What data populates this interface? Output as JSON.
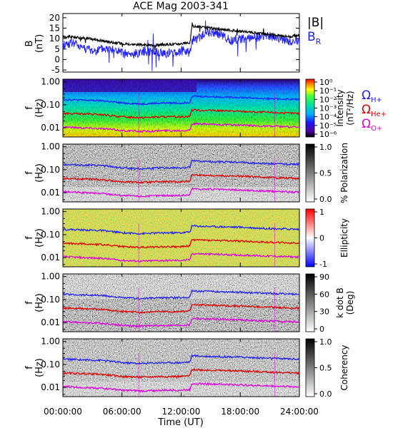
{
  "title": "ACE Mag 2003-341",
  "xlabel": "Time (UT)",
  "x_ticks": [
    "00:00:00",
    "06:00:00",
    "12:00:00",
    "18:00:00",
    "24:00:00"
  ],
  "legend": {
    "top": [
      {
        "label": "|B|",
        "color": "#000000"
      },
      {
        "label": "B",
        "sub": "R",
        "color": "#1f1fff"
      }
    ],
    "gyro": [
      {
        "label": "Ω",
        "sub": "H+",
        "color": "#1f1fff"
      },
      {
        "label": "Ω",
        "sub": "He+",
        "color": "#e00000"
      },
      {
        "label": "Ω",
        "sub": "O+",
        "color": "#e000e0"
      }
    ]
  },
  "panels": {
    "b": {
      "ylabel": "B",
      "yunit": "(nT)",
      "yticks": [
        "20",
        "15",
        "10",
        "5",
        "0",
        "-5"
      ]
    },
    "spectral": [
      {
        "id": "intensity",
        "ylabel": "f",
        "yunit": "(Hz)",
        "yticks": [
          "1.00",
          "0.10",
          "0.01"
        ],
        "cbar_label1": "Intensity",
        "cbar_label2": "(nT²/Hz)",
        "cbar_ticks": [
          "10⁰",
          "10⁻¹",
          "10⁻²",
          "10⁻³",
          "10⁻⁴",
          "10⁻⁵",
          "10⁻⁶"
        ]
      },
      {
        "id": "polarization",
        "ylabel": "f",
        "yunit": "(Hz)",
        "yticks": [
          "1.00",
          "0.10",
          "0.01"
        ],
        "cbar_label1": "% Polarization",
        "cbar_label2": "",
        "cbar_ticks": [
          "1.0",
          "0.5",
          "0.0"
        ]
      },
      {
        "id": "ellipticity",
        "ylabel": "f",
        "yunit": "(Hz)",
        "yticks": [
          "1.00",
          "0.10",
          "0.01"
        ],
        "cbar_label1": "Ellipticity",
        "cbar_label2": "",
        "cbar_ticks": [
          "1",
          "0",
          "-1"
        ]
      },
      {
        "id": "kdotb",
        "ylabel": "f",
        "yunit": "(Hz)",
        "yticks": [
          "1.00",
          "0.10",
          "0.01"
        ],
        "cbar_label1": "k dot B",
        "cbar_label2": "(Deg)",
        "cbar_ticks": [
          "90",
          "60",
          "30",
          "0"
        ]
      },
      {
        "id": "coherency",
        "ylabel": "f",
        "yunit": "(Hz)",
        "yticks": [
          "1.00",
          "0.10",
          "0.01"
        ],
        "cbar_label1": "Coherency",
        "cbar_label2": "",
        "cbar_ticks": [
          "1.0",
          "0.5",
          "0.0"
        ]
      }
    ]
  },
  "chart_data": {
    "type": "line",
    "title": "ACE Mag 2003-341",
    "xlabel": "Time (UT)",
    "xlim": [
      0,
      24
    ],
    "b_field": {
      "ylabel": "B (nT)",
      "ylim": [
        -6,
        22
      ],
      "x_hours": [
        0,
        1,
        2,
        3,
        4,
        5,
        6,
        7,
        8,
        9,
        10,
        11,
        12,
        12.9,
        13.1,
        14,
        15,
        16,
        17,
        18,
        19,
        20,
        21,
        22,
        23,
        24
      ],
      "series": [
        {
          "name": "|B|",
          "color": "#000000",
          "values": [
            11,
            10.8,
            10.3,
            9.8,
            9.0,
            8.2,
            7.7,
            7.3,
            7.0,
            6.9,
            7.0,
            7.3,
            7.6,
            8.0,
            16,
            15.5,
            15,
            14.5,
            14,
            13.5,
            13,
            12.5,
            12,
            11.5,
            11,
            11.5
          ]
        },
        {
          "name": "B_R",
          "color": "#1f1fff",
          "values": [
            7,
            8,
            6,
            4,
            5,
            5,
            3,
            2,
            4,
            4,
            3,
            3,
            4,
            4,
            9,
            11,
            13,
            12,
            9,
            10,
            10,
            11,
            11,
            10,
            9,
            9
          ]
        }
      ]
    },
    "gyrofrequency_traces": {
      "x_hours": [
        0,
        2,
        4,
        6,
        8,
        10,
        12,
        12.9,
        13.1,
        14,
        16,
        18,
        20,
        22,
        24
      ],
      "series": [
        {
          "name": "Ω_H+",
          "color": "#1f1fff",
          "values_hz": [
            0.17,
            0.16,
            0.15,
            0.12,
            0.11,
            0.12,
            0.12,
            0.13,
            0.24,
            0.23,
            0.22,
            0.21,
            0.19,
            0.18,
            0.17
          ]
        },
        {
          "name": "Ω_He+",
          "color": "#e00000",
          "values_hz": [
            0.042,
            0.04,
            0.037,
            0.03,
            0.028,
            0.03,
            0.03,
            0.032,
            0.06,
            0.058,
            0.055,
            0.052,
            0.048,
            0.045,
            0.042
          ]
        },
        {
          "name": "Ω_O+",
          "color": "#e000e0",
          "values_hz": [
            0.011,
            0.01,
            0.0093,
            0.0076,
            0.007,
            0.0075,
            0.0076,
            0.008,
            0.015,
            0.0145,
            0.0138,
            0.013,
            0.012,
            0.0113,
            0.0106
          ]
        }
      ]
    },
    "spectrogram_freq_range_hz": [
      0.004,
      1.3
    ],
    "colors": {
      "intensity_scale": [
        "#2b0060",
        "#1a1aff",
        "#00b0ff",
        "#00e0a0",
        "#40ff40",
        "#ffff00",
        "#ff8000",
        "#ff0000"
      ]
    }
  }
}
